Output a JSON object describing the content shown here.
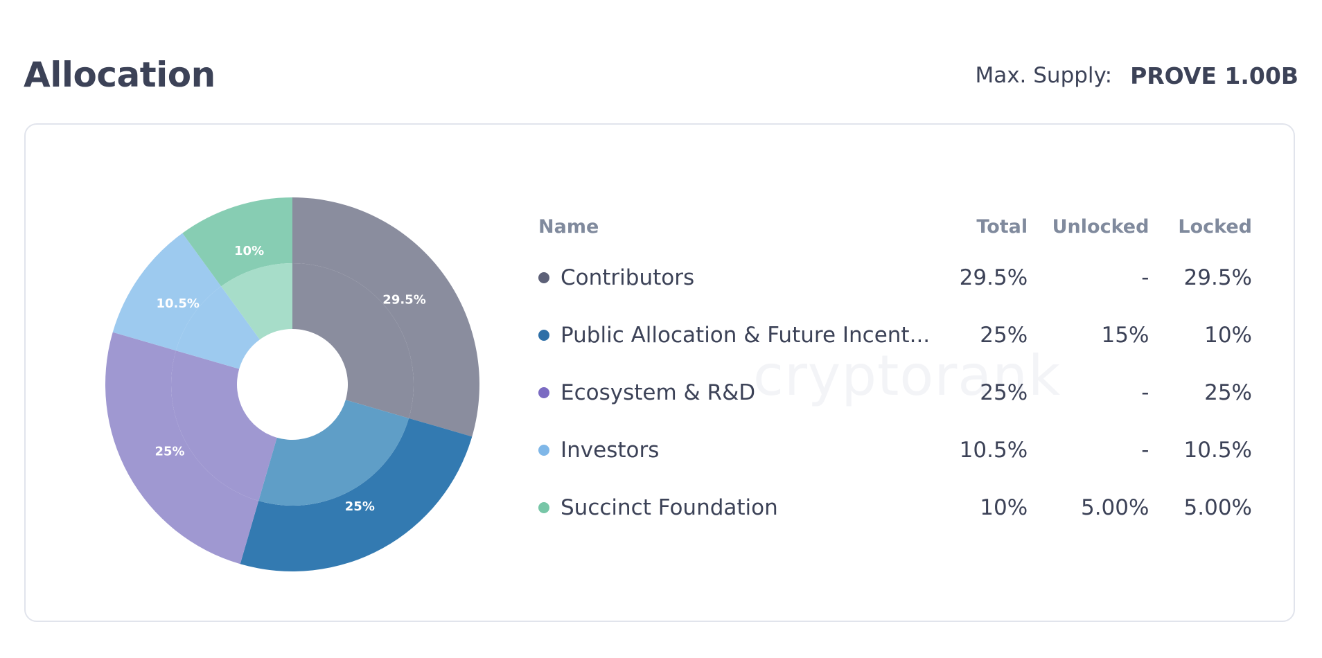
{
  "header": {
    "title": "Allocation",
    "supply_label": "Max. Supply:",
    "supply_value": "PROVE 1.00B"
  },
  "watermark": "cryptorank",
  "table": {
    "columns": {
      "name": "Name",
      "total": "Total",
      "unlocked": "Unlocked",
      "locked": "Locked"
    },
    "rows": [
      {
        "name": "Contributors",
        "total": "29.5%",
        "unlocked": "-",
        "locked": "29.5%",
        "color": "#5d6178"
      },
      {
        "name": "Public Allocation & Future Incent...",
        "total": "25%",
        "unlocked": "15%",
        "locked": "10%",
        "color": "#2e6fa7"
      },
      {
        "name": "Ecosystem & R&D",
        "total": "25%",
        "unlocked": "-",
        "locked": "25%",
        "color": "#7b6bc2"
      },
      {
        "name": "Investors",
        "total": "10.5%",
        "unlocked": "-",
        "locked": "10.5%",
        "color": "#7fb7e8"
      },
      {
        "name": "Succinct Foundation",
        "total": "10%",
        "unlocked": "5.00%",
        "locked": "5.00%",
        "color": "#77c6a7"
      }
    ]
  },
  "chart_data": {
    "type": "pie",
    "labels": [
      "Contributors",
      "Public Allocation & Future Incent...",
      "Ecosystem & R&D",
      "Investors",
      "Succinct Foundation"
    ],
    "values": [
      29.5,
      25,
      25,
      10.5,
      10
    ],
    "unlocked": [
      0,
      15,
      0,
      0,
      5
    ],
    "slice_labels": [
      "29.5%",
      "25%",
      "25%",
      "10.5%",
      "10%"
    ],
    "colors": [
      "#8a8d9e",
      "#337ab1",
      "#9f98d1",
      "#9dcaef",
      "#87cdb3"
    ],
    "unlocked_colors": [
      "#8a8d9e",
      "#5f9ec7",
      "#9f98d1",
      "#9dcaef",
      "#a7ddc9"
    ],
    "title": "",
    "legend": "none"
  }
}
